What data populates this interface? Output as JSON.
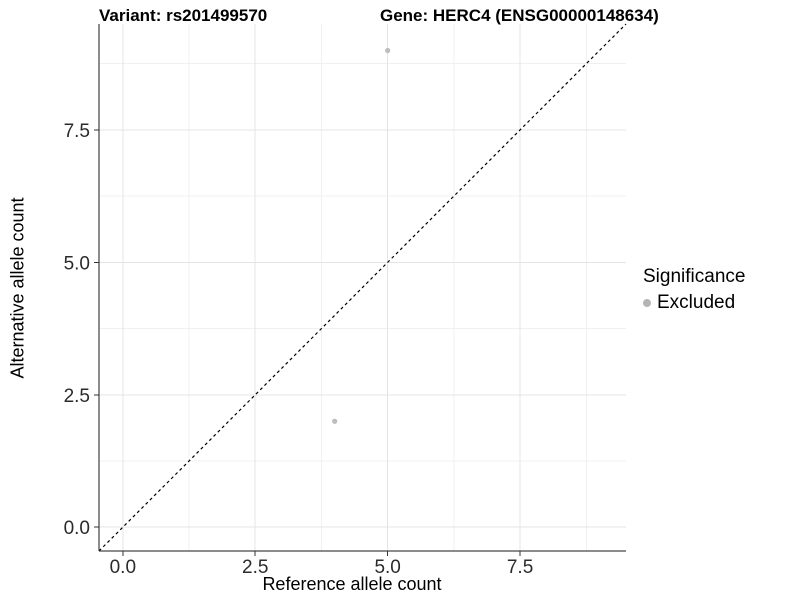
{
  "figure": {
    "title_left": "Variant: rs201499570",
    "title_right": "Gene: HERC4 (ENSG00000148634)"
  },
  "chart_data": {
    "type": "scatter",
    "title": "Variant: rs201499570   Gene: HERC4 (ENSG00000148634)",
    "xlabel": "Reference allele count",
    "ylabel": "Alternative allele count",
    "xlim": [
      -0.45,
      9.5
    ],
    "ylim": [
      -0.45,
      9.5
    ],
    "x_major_ticks": [
      0,
      2.5,
      5,
      7.5
    ],
    "y_major_ticks": [
      0,
      2.5,
      5,
      7.5
    ],
    "x_minor_ticks": [
      1.25,
      3.75,
      6.25,
      8.75
    ],
    "y_minor_ticks": [
      1.25,
      3.75,
      6.25,
      8.75
    ],
    "grid": true,
    "legend_position": "right",
    "series": [
      {
        "name": "Excluded",
        "color": "#bdbdbd",
        "points": [
          {
            "x": 5,
            "y": 9
          },
          {
            "x": 4,
            "y": 2
          }
        ]
      }
    ],
    "reference_line": {
      "type": "identity",
      "style": "dashed",
      "color": "#000000",
      "from": [
        -0.45,
        -0.45
      ],
      "to": [
        9.5,
        9.5
      ]
    },
    "legend": {
      "title": "Significance",
      "entries": [
        {
          "label": "Excluded",
          "color": "#b5b5b5"
        }
      ]
    },
    "colors": {
      "grid_major": "#e4e4e4",
      "grid_minor": "#f0f0f0",
      "axis_line": "#1a1a1a",
      "tick_mark": "#333333",
      "tick_text": "#2b2b2b"
    }
  }
}
